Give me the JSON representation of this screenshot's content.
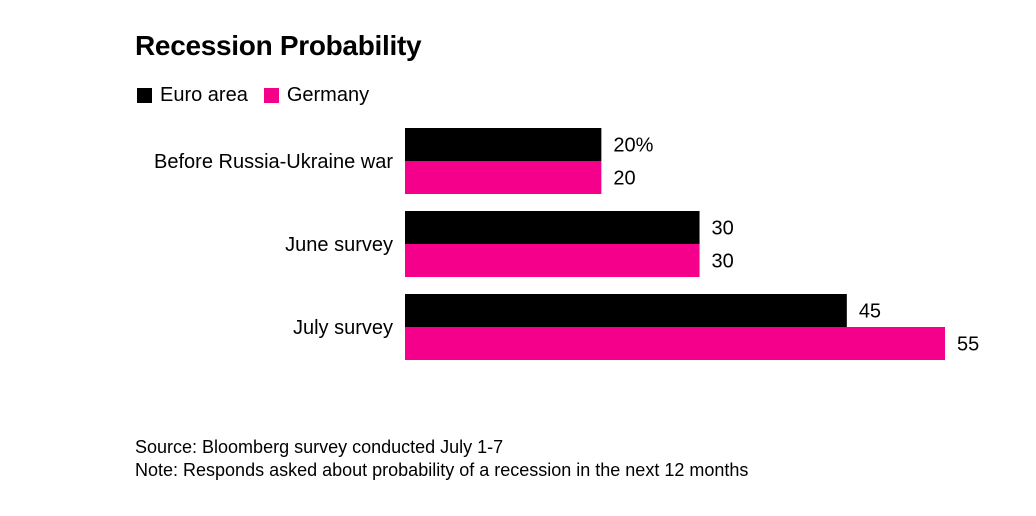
{
  "title": "Recession Probability",
  "colors": {
    "euro_area": "#000000",
    "germany": "#f5008b"
  },
  "chart_data": {
    "type": "bar",
    "orientation": "horizontal",
    "title": "Recession Probability",
    "categories": [
      "Before Russia-Ukraine war",
      "June survey",
      "July survey"
    ],
    "series": [
      {
        "name": "Euro area",
        "values": [
          20,
          30,
          45
        ],
        "labels": [
          "20%",
          "30",
          "45"
        ],
        "color": "#000000"
      },
      {
        "name": "Germany",
        "values": [
          20,
          30,
          55
        ],
        "labels": [
          "20",
          "30",
          "55"
        ],
        "color": "#f5008b"
      }
    ],
    "xlim": [
      0,
      55
    ],
    "grid": false,
    "legend_position": "top-left"
  },
  "footer": {
    "source": "Source: Bloomberg survey conducted July 1-7",
    "note": "Note: Responds asked about probability of a recession in the next 12 months"
  }
}
